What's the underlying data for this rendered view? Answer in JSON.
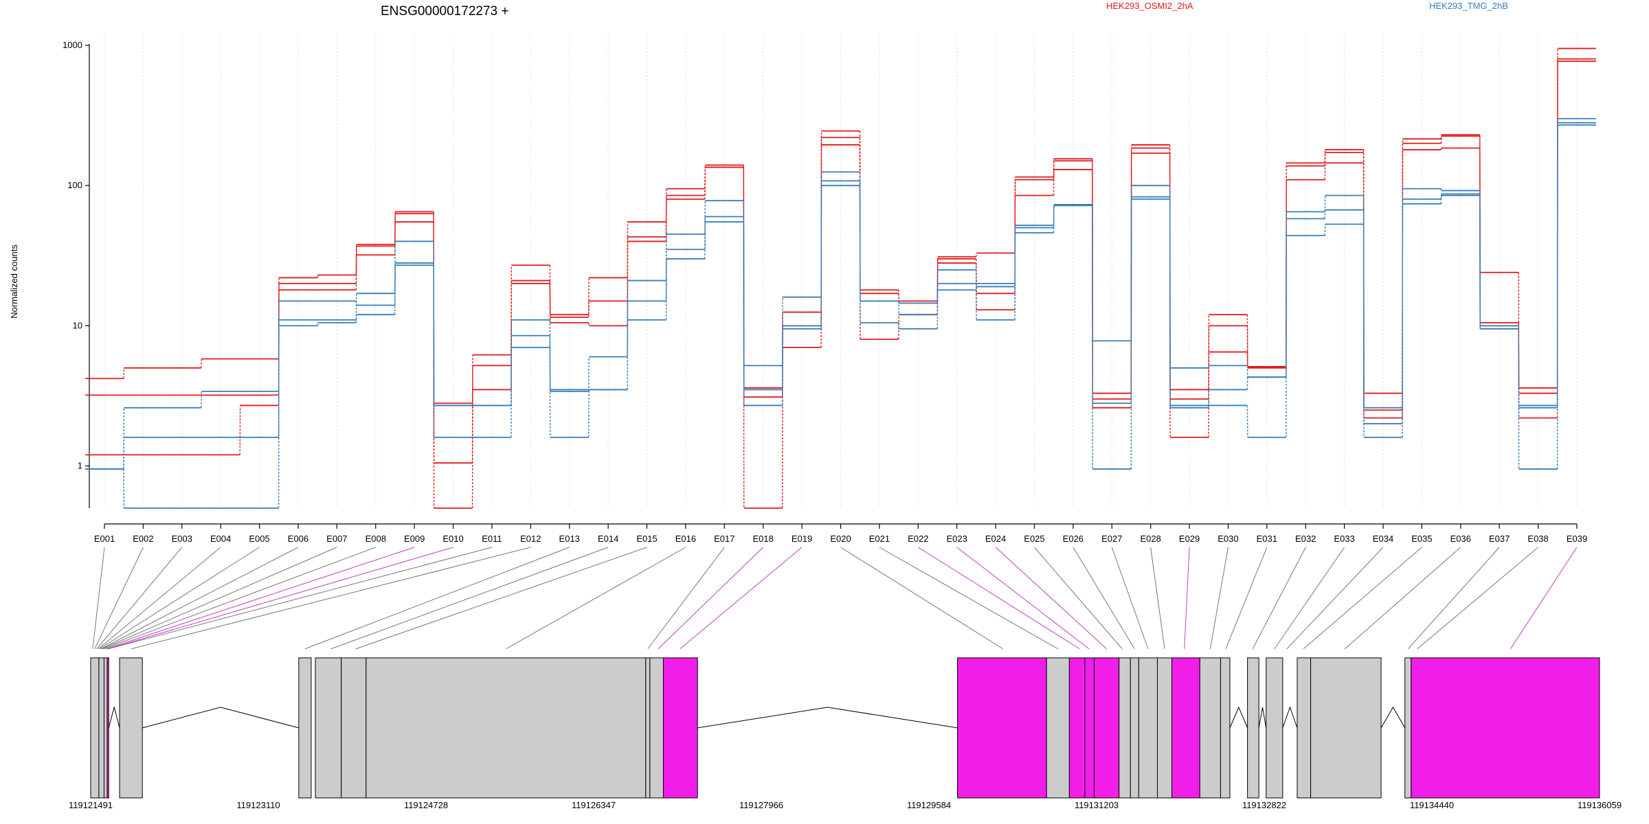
{
  "chart_data": {
    "type": "line",
    "title": "ENSG00000172273 +",
    "xlabel": "",
    "ylabel": "Normalized counts",
    "y_scale": "log",
    "ylim": [
      0.5,
      1000
    ],
    "y_ticks": [
      1,
      10,
      100,
      1000
    ],
    "y_tick_labels": [
      "1",
      "10",
      "100",
      "1000"
    ],
    "grid": "vertical, dotted",
    "legend_position": "top",
    "categories": [
      "E001",
      "E002",
      "E003",
      "E004",
      "E005",
      "E006",
      "E007",
      "E008",
      "E009",
      "E010",
      "E011",
      "E012",
      "E013",
      "E014",
      "E015",
      "E016",
      "E017",
      "E018",
      "E019",
      "E020",
      "E021",
      "E022",
      "E023",
      "E024",
      "E025",
      "E026",
      "E027",
      "E028",
      "E029",
      "E030",
      "E031",
      "E032",
      "E033",
      "E034",
      "E035",
      "E036",
      "E037",
      "E038",
      "E039"
    ],
    "groups": [
      {
        "name": "HEK293_OSMI2_2hA",
        "color": "#e41a1c"
      },
      {
        "name": "HEK293_TMG_2hB",
        "color": "#377eb8"
      }
    ],
    "series": [
      {
        "group": "HEK293_OSMI2_2hA",
        "values": [
          4.2,
          5.0,
          5.0,
          5.8,
          5.8,
          22,
          23,
          38,
          65,
          1.05,
          6.2,
          27,
          12,
          22,
          55,
          95,
          140,
          0.5,
          7,
          245,
          18,
          15,
          31,
          33,
          115,
          155,
          3.3,
          195,
          3.5,
          12,
          5.1,
          145,
          180,
          3.3,
          215,
          230,
          24,
          3.6,
          950
        ]
      },
      {
        "group": "HEK293_OSMI2_2hA",
        "values": [
          3.2,
          3.2,
          3.2,
          3.2,
          3.2,
          20,
          20,
          37,
          63,
          2.8,
          5.2,
          21,
          11.5,
          15,
          43,
          85,
          135,
          3.6,
          12.5,
          220,
          17,
          14.5,
          30,
          17,
          110,
          150,
          3.0,
          185,
          3.0,
          10,
          5.1,
          138,
          172,
          2.5,
          200,
          225,
          10.5,
          3.3,
          800
        ]
      },
      {
        "group": "HEK293_OSMI2_2hA",
        "values": [
          1.2,
          1.2,
          1.2,
          1.2,
          2.7,
          18,
          18,
          32,
          55,
          0.5,
          3.5,
          20,
          10.5,
          10,
          40,
          80,
          135,
          3.1,
          10,
          195,
          8,
          12,
          28,
          13,
          85,
          130,
          2.6,
          170,
          1.6,
          6.5,
          5.0,
          110,
          145,
          2.2,
          180,
          185,
          10,
          2.2,
          770
        ]
      },
      {
        "group": "HEK293_TMG_2hB",
        "values": [
          0.95,
          1.6,
          1.6,
          1.6,
          1.6,
          11,
          11,
          17,
          40,
          2.7,
          2.7,
          11,
          3.5,
          3.5,
          21,
          45,
          78,
          5.2,
          16,
          125,
          15,
          14.5,
          25,
          20,
          52,
          73,
          7.8,
          100,
          5.0,
          5.2,
          4.3,
          65,
          85,
          2.6,
          95,
          92,
          10,
          2.6,
          300
        ]
      },
      {
        "group": "HEK293_TMG_2hB",
        "values": [
          0.95,
          2.6,
          2.6,
          3.4,
          3.4,
          15,
          15,
          14,
          28,
          2.7,
          2.7,
          8.5,
          3.4,
          6,
          15,
          35,
          60,
          3.5,
          10,
          108,
          15,
          12,
          20,
          19,
          50,
          73,
          2.8,
          83,
          2.7,
          3.5,
          4.3,
          58,
          67,
          2.0,
          80,
          87,
          9.5,
          2.7,
          280
        ]
      },
      {
        "group": "HEK293_TMG_2hB",
        "values": [
          0.95,
          0.5,
          0.5,
          0.5,
          0.5,
          10,
          10.5,
          12,
          27,
          1.6,
          1.6,
          7,
          1.6,
          3.5,
          11,
          30,
          55,
          2.7,
          9.5,
          100,
          10.5,
          9.5,
          18,
          11,
          46,
          72,
          0.95,
          80,
          2.6,
          2.7,
          1.6,
          44,
          53,
          1.6,
          74,
          85,
          9.5,
          0.95,
          270
        ]
      }
    ],
    "gene_model": {
      "coordinate_labels": [
        "119121491",
        "119123110",
        "119124728",
        "119126347",
        "119127966",
        "119129584",
        "119131203",
        "119132822",
        "119134440",
        "119136059"
      ],
      "start": 119121491,
      "end": 119136059,
      "connector_highlighted": [
        false,
        false,
        false,
        false,
        false,
        false,
        false,
        false,
        true,
        true,
        false,
        false,
        false,
        false,
        false,
        false,
        false,
        true,
        true,
        false,
        false,
        true,
        true,
        true,
        false,
        false,
        false,
        false,
        true,
        false,
        false,
        false,
        false,
        false,
        false,
        false,
        false,
        false,
        true
      ],
      "exons": [
        {
          "start": 119121491,
          "end": 119121570,
          "highlight": false
        },
        {
          "start": 119121570,
          "end": 119121620,
          "highlight": false
        },
        {
          "start": 119121620,
          "end": 119121650,
          "highlight": false
        },
        {
          "start": 119121650,
          "end": 119121665,
          "highlight": true
        },
        {
          "start": 119121770,
          "end": 119121990,
          "highlight": false
        },
        {
          "start": 119123500,
          "end": 119123620,
          "highlight": false
        },
        {
          "start": 119123660,
          "end": 119123910,
          "highlight": false
        },
        {
          "start": 119123910,
          "end": 119124150,
          "highlight": false
        },
        {
          "start": 119124150,
          "end": 119126850,
          "highlight": false
        },
        {
          "start": 119126850,
          "end": 119126890,
          "highlight": false
        },
        {
          "start": 119126890,
          "end": 119127020,
          "highlight": false
        },
        {
          "start": 119127020,
          "end": 119127350,
          "highlight": true
        },
        {
          "start": 119129860,
          "end": 119130720,
          "highlight": true
        },
        {
          "start": 119130720,
          "end": 119130940,
          "highlight": false
        },
        {
          "start": 119130940,
          "end": 119131090,
          "highlight": true
        },
        {
          "start": 119131090,
          "end": 119131180,
          "highlight": true
        },
        {
          "start": 119131180,
          "end": 119131420,
          "highlight": true
        },
        {
          "start": 119131420,
          "end": 119131530,
          "highlight": false
        },
        {
          "start": 119131530,
          "end": 119131610,
          "highlight": false
        },
        {
          "start": 119131610,
          "end": 119131790,
          "highlight": false
        },
        {
          "start": 119131790,
          "end": 119131930,
          "highlight": false
        },
        {
          "start": 119131930,
          "end": 119132200,
          "highlight": true
        },
        {
          "start": 119132200,
          "end": 119132400,
          "highlight": false
        },
        {
          "start": 119132400,
          "end": 119132490,
          "highlight": false
        },
        {
          "start": 119132660,
          "end": 119132770,
          "highlight": false
        },
        {
          "start": 119132840,
          "end": 119133000,
          "highlight": false
        },
        {
          "start": 119133140,
          "end": 119133270,
          "highlight": false
        },
        {
          "start": 119133270,
          "end": 119133950,
          "highlight": false
        },
        {
          "start": 119134180,
          "end": 119134240,
          "highlight": false
        },
        {
          "start": 119134240,
          "end": 119136059,
          "highlight": true
        }
      ],
      "connector_targets": [
        119121510,
        119121530,
        119121550,
        119121565,
        119121575,
        119121590,
        119121600,
        119121615,
        119121640,
        119121655,
        119121660,
        119121880,
        119123560,
        119123810,
        119124050,
        119125500,
        119126870,
        119126970,
        119127180,
        119130300,
        119130830,
        119131040,
        119131130,
        119131300,
        119131450,
        119131570,
        119131700,
        119131860,
        119132050,
        119132300,
        119132450,
        119132710,
        119132920,
        119133040,
        119133200,
        119133600,
        119134210,
        119134300,
        119135200
      ],
      "introns": [
        {
          "start": 119121665,
          "end": 119121770
        },
        {
          "start": 119121990,
          "end": 119123500
        },
        {
          "start": 119127350,
          "end": 119129860
        },
        {
          "start": 119132490,
          "end": 119132660
        },
        {
          "start": 119132770,
          "end": 119132840
        },
        {
          "start": 119133000,
          "end": 119133140
        },
        {
          "start": 119133950,
          "end": 119134180
        }
      ],
      "exon_color": "#cccccc",
      "highlight_color": "#f01ee8"
    }
  }
}
